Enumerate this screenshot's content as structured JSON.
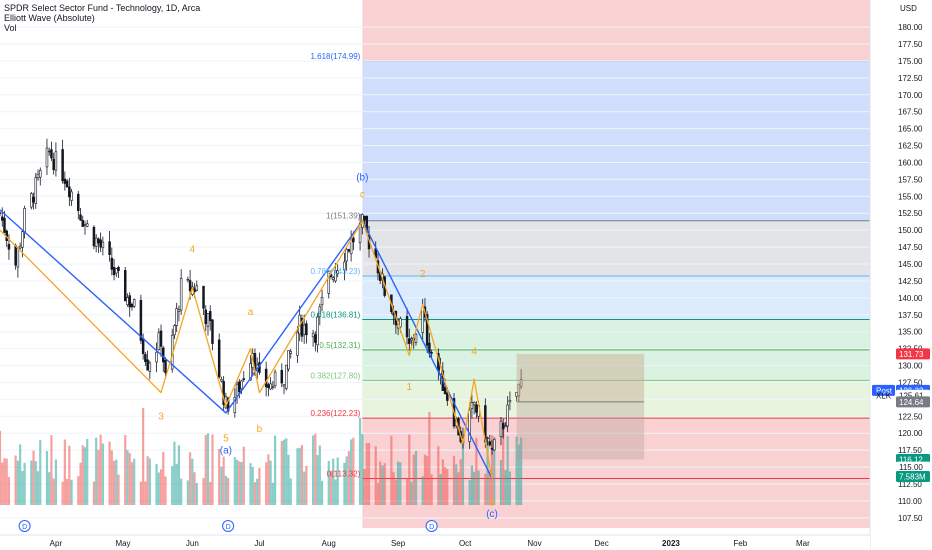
{
  "header": {
    "title": "SPDR Select Sector Fund - Technology, 1D, Arca",
    "indicator": "Elliott Wave (Absolute)",
    "volume": "Vol"
  },
  "colors": {
    "up": "#26a69a",
    "down": "#ef5350",
    "wave_blue": "#2962ff",
    "wave_orange": "#f5a623",
    "fib_red_zone": "#f8c9cb",
    "fib_blue_zone": "#c9d7fb",
    "fib_gray_zone": "#dedfe3",
    "fib_lightblue_zone": "#d6e8fb",
    "fib_green_zone": "#d4f0dc",
    "fib_lightgreen_zone": "#e3f3d9"
  },
  "chart_data": {
    "type": "candlestick",
    "axis_currency": "USD",
    "ylim": [
      106,
      184
    ],
    "y_ticks": [
      "180.00",
      "177.50",
      "175.00",
      "172.50",
      "170.00",
      "167.50",
      "165.00",
      "162.50",
      "160.00",
      "157.50",
      "155.00",
      "152.50",
      "150.00",
      "147.50",
      "145.00",
      "142.50",
      "140.00",
      "137.50",
      "135.00",
      "132.50",
      "130.00",
      "127.50",
      "125.00",
      "122.50",
      "120.00",
      "117.50",
      "115.00",
      "112.50",
      "110.00",
      "107.50"
    ],
    "x_start": "2022-03-07",
    "x_end": "2023-03-31",
    "x_ticks": [
      {
        "label": "Apr",
        "date": "2022-04-01"
      },
      {
        "label": "May",
        "date": "2022-05-01"
      },
      {
        "label": "Jun",
        "date": "2022-06-01"
      },
      {
        "label": "Jul",
        "date": "2022-07-01"
      },
      {
        "label": "Aug",
        "date": "2022-08-01"
      },
      {
        "label": "Sep",
        "date": "2022-09-01"
      },
      {
        "label": "Oct",
        "date": "2022-10-01"
      },
      {
        "label": "Nov",
        "date": "2022-11-01"
      },
      {
        "label": "Dec",
        "date": "2022-12-01"
      },
      {
        "label": "2023",
        "date": "2023-01-01",
        "bold": true
      },
      {
        "label": "Feb",
        "date": "2023-02-01"
      },
      {
        "label": "Mar",
        "date": "2023-03-01"
      }
    ],
    "price_anchors": [
      [
        "2022-03-07",
        152.5
      ],
      [
        "2022-03-14",
        145.0
      ],
      [
        "2022-03-18",
        152.0
      ],
      [
        "2022-03-29",
        161.5
      ],
      [
        "2022-04-05",
        158.0
      ],
      [
        "2022-04-14",
        151.0
      ],
      [
        "2022-04-22",
        147.0
      ],
      [
        "2022-05-02",
        140.5
      ],
      [
        "2022-05-06",
        138.5
      ],
      [
        "2022-05-12",
        130.5
      ],
      [
        "2022-05-18",
        134.0
      ],
      [
        "2022-05-20",
        128.0
      ],
      [
        "2022-05-27",
        141.5
      ],
      [
        "2022-06-03",
        141.5
      ],
      [
        "2022-06-09",
        135.5
      ],
      [
        "2022-06-16",
        124.0
      ],
      [
        "2022-06-21",
        126.0
      ],
      [
        "2022-06-28",
        132.5
      ],
      [
        "2022-07-01",
        127.5
      ],
      [
        "2022-07-06",
        127.0
      ],
      [
        "2022-07-12",
        128.5
      ],
      [
        "2022-07-19",
        136.0
      ],
      [
        "2022-07-26",
        135.0
      ],
      [
        "2022-08-01",
        143.0
      ],
      [
        "2022-08-16",
        150.8
      ],
      [
        "2022-08-22",
        146.0
      ],
      [
        "2022-08-26",
        141.0
      ],
      [
        "2022-09-06",
        132.5
      ],
      [
        "2022-09-12",
        138.0
      ],
      [
        "2022-09-14",
        134.0
      ],
      [
        "2022-09-21",
        127.5
      ],
      [
        "2022-09-30",
        118.5
      ],
      [
        "2022-10-05",
        124.5
      ],
      [
        "2022-10-13",
        117.0
      ],
      [
        "2022-10-18",
        121.5
      ],
      [
        "2022-10-26",
        127.5
      ]
    ],
    "volume_max_label": "7.583M",
    "fib_levels": [
      {
        "ratio_label": "0",
        "label": "0(113.32)",
        "price": 113.32,
        "color": "#f23645"
      },
      {
        "ratio_label": "0.236",
        "label": "0.236(122.23)",
        "price": 122.23,
        "color": "#f23645"
      },
      {
        "ratio_label": "0.382",
        "label": "0.382(127.80)",
        "price": 127.8,
        "color": "#81c784"
      },
      {
        "ratio_label": "0.5",
        "label": "0.5(132.31)",
        "price": 132.31,
        "color": "#4caf50"
      },
      {
        "ratio_label": "0.618",
        "label": "0.618(136.81)",
        "price": 136.81,
        "color": "#089981"
      },
      {
        "ratio_label": "0.786",
        "label": "0.786(143.23)",
        "price": 143.23,
        "color": "#64b5f6"
      },
      {
        "ratio_label": "1",
        "label": "1(151.39)",
        "price": 151.39,
        "color": "#787b86"
      },
      {
        "ratio_label": "1.618",
        "label": "1.618(174.99)",
        "price": 174.99,
        "color": "#2962ff"
      }
    ],
    "fib_start_date": "2022-08-16",
    "wave_blue": [
      {
        "date": "2022-03-07",
        "price": 153.0
      },
      {
        "date": "2022-06-16",
        "price": 123.0
      },
      {
        "date": "2022-08-16",
        "price": 151.39
      },
      {
        "date": "2022-10-13",
        "price": 113.32
      }
    ],
    "wave_orange": [
      {
        "date": "2022-03-07",
        "price": 150.0
      },
      {
        "date": "2022-05-18",
        "price": 126.0
      },
      {
        "date": "2022-06-01",
        "price": 141.5
      },
      {
        "date": "2022-06-16",
        "price": 124.0
      },
      {
        "date": "2022-06-27",
        "price": 132.5
      },
      {
        "date": "2022-07-01",
        "price": 126.0
      },
      {
        "date": "2022-08-16",
        "price": 151.39
      },
      {
        "date": "2022-09-06",
        "price": 131.5
      },
      {
        "date": "2022-09-12",
        "price": 139.0
      },
      {
        "date": "2022-09-30",
        "price": 118.5
      },
      {
        "date": "2022-10-05",
        "price": 128.0
      },
      {
        "date": "2022-10-13",
        "price": 113.32
      }
    ],
    "wave_labels": [
      {
        "text": "(b)",
        "date": "2022-08-16",
        "price": 157.3,
        "color": "#2962ff"
      },
      {
        "text": "c",
        "date": "2022-08-16",
        "price": 154.8,
        "color": "#f5a623"
      },
      {
        "text": "4",
        "date": "2022-06-01",
        "price": 146.7,
        "color": "#f5a623"
      },
      {
        "text": "a",
        "date": "2022-06-27",
        "price": 137.5,
        "color": "#f5a623"
      },
      {
        "text": "3",
        "date": "2022-05-18",
        "price": 122.0,
        "color": "#f5a623"
      },
      {
        "text": "b",
        "date": "2022-07-01",
        "price": 120.2,
        "color": "#f5a623"
      },
      {
        "text": "5",
        "date": "2022-06-16",
        "price": 118.8,
        "color": "#f5a623"
      },
      {
        "text": "(a)",
        "date": "2022-06-16",
        "price": 117.0,
        "color": "#2962ff"
      },
      {
        "text": "2",
        "date": "2022-09-12",
        "price": 143.1,
        "color": "#f5a623"
      },
      {
        "text": "4",
        "date": "2022-10-05",
        "price": 131.6,
        "color": "#f5a623"
      },
      {
        "text": "1",
        "date": "2022-09-06",
        "price": 126.4,
        "color": "#f5a623"
      },
      {
        "text": "5",
        "date": "2022-10-13",
        "price": 109.3,
        "color": "#f5a623"
      },
      {
        "text": "(c)",
        "date": "2022-10-13",
        "price": 107.6,
        "color": "#2962ff"
      }
    ],
    "position_box": {
      "start_date": "2022-10-24",
      "end_date": "2022-12-20",
      "entry": 124.64,
      "target": 131.73,
      "stop": 116.12
    },
    "price_badges": [
      {
        "label": "131.73",
        "price": 131.73,
        "bg": "#f23645",
        "fg": "#ffffff"
      },
      {
        "label": "126.33",
        "price": 126.33,
        "bg": "#2962ff",
        "fg": "#ffffff",
        "tag": "Post"
      },
      {
        "label": "125.61",
        "price": 125.61,
        "bg": "#ffffff",
        "fg": "#131722",
        "tag": "XLK"
      },
      {
        "label": "124.64",
        "price": 124.64,
        "bg": "#787b86",
        "fg": "#ffffff"
      },
      {
        "label": "116.12",
        "price": 116.12,
        "bg": "#089981",
        "fg": "#ffffff"
      },
      {
        "label": "115.00",
        "price": 115.0,
        "bg": "#ffffff",
        "fg": "#131722"
      },
      {
        "label": "7.583M",
        "price": 113.6,
        "bg": "#089981",
        "fg": "#ffffff"
      }
    ],
    "dividend_markers": [
      {
        "date": "2022-03-18",
        "label": "D"
      },
      {
        "date": "2022-06-17",
        "label": "D"
      },
      {
        "date": "2022-09-16",
        "label": "D"
      }
    ]
  }
}
